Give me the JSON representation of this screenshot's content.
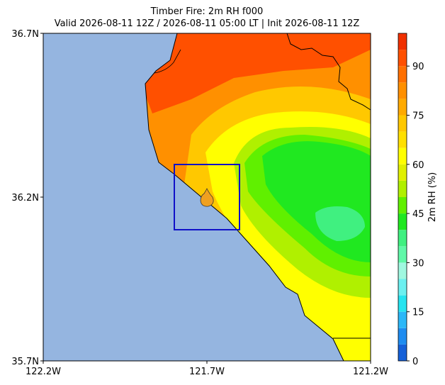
{
  "chart_data": {
    "type": "map",
    "title": "Timber Fire: 2m RH f000",
    "subtitle": "Valid 2026-08-11 12Z / 2026-08-11 05:00 LT | Init 2026-08-11 12Z",
    "xlim": [
      -122.2,
      -121.2
    ],
    "xticks": [
      {
        "value": -122.2,
        "label": "122.2W"
      },
      {
        "value": -121.7,
        "label": "121.7W"
      },
      {
        "value": -121.2,
        "label": "121.2W"
      }
    ],
    "ylim": [
      35.7,
      36.7
    ],
    "yticks": [
      {
        "value": 35.7,
        "label": "35.7N"
      },
      {
        "value": 36.2,
        "label": "36.2N"
      },
      {
        "value": 36.7,
        "label": "36.7N"
      }
    ],
    "colorbar": {
      "label": "2m RH (%)",
      "lim": [
        0,
        100
      ],
      "ticks": [
        0,
        15,
        30,
        45,
        60,
        75,
        90
      ],
      "levels": [
        0,
        5,
        10,
        15,
        20,
        25,
        30,
        35,
        40,
        45,
        50,
        55,
        60,
        65,
        70,
        75,
        80,
        85,
        90,
        95,
        100
      ],
      "colors": [
        "#1560d8",
        "#1e8cf0",
        "#2cb8f8",
        "#26e4f0",
        "#6cf0f0",
        "#a0f8e0",
        "#60f8a8",
        "#40f080",
        "#20e820",
        "#60f000",
        "#b0f000",
        "#e0f000",
        "#ffff00",
        "#ffe000",
        "#ffc800",
        "#ffaa00",
        "#ff9000",
        "#ff7000",
        "#ff5000",
        "#f03000"
      ]
    }
  }
}
